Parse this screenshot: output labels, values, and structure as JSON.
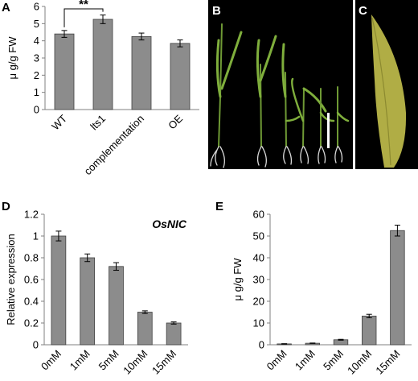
{
  "panels": {
    "A": {
      "label": "A"
    },
    "B": {
      "label": "B"
    },
    "C": {
      "label": "C"
    },
    "D": {
      "label": "D"
    },
    "E": {
      "label": "E"
    }
  },
  "colors": {
    "bar_fill": "#8c8c8c",
    "bar_stroke": "#404040",
    "axis": "#808080",
    "photo_background": "#000000",
    "leaf_green": "#7fae3c",
    "leaf_yellow_green": "#b8b448",
    "root_white": "#d9d9d9"
  },
  "chart_data": [
    {
      "panel": "A",
      "type": "bar",
      "categories": [
        "WT",
        "lts1",
        "complementation",
        "OE"
      ],
      "values": [
        4.4,
        5.25,
        4.25,
        3.85
      ],
      "errors": [
        0.2,
        0.25,
        0.2,
        0.2
      ],
      "ylabel": "μ g/g FW",
      "ylim": [
        0,
        6
      ],
      "yticks": [
        "0",
        "1",
        "2",
        "3",
        "4",
        "5",
        "6"
      ],
      "significance": {
        "text": "**",
        "between": [
          "WT",
          "lts1"
        ]
      },
      "grid": false
    },
    {
      "panel": "D",
      "type": "bar",
      "categories": [
        "0mM",
        "1mM",
        "5mM",
        "10mM",
        "15mM"
      ],
      "values": [
        1.0,
        0.8,
        0.72,
        0.3,
        0.2
      ],
      "errors": [
        0.045,
        0.035,
        0.035,
        0.012,
        0.01
      ],
      "ylabel": "Relative expression",
      "annotation": "OsNIC",
      "ylim": [
        0,
        1.2
      ],
      "yticks": [
        "0",
        "0.2",
        "0.4",
        "0.6",
        "0.8",
        "1",
        "1.2"
      ],
      "grid": false
    },
    {
      "panel": "E",
      "type": "bar",
      "categories": [
        "0mM",
        "1mM",
        "5mM",
        "10mM",
        "15mM"
      ],
      "values": [
        0.4,
        0.7,
        2.3,
        13.2,
        52.5
      ],
      "errors": [
        0.1,
        0.1,
        0.2,
        0.8,
        2.5
      ],
      "ylabel": "μ g/g FW",
      "ylim": [
        0,
        60
      ],
      "yticks": [
        "0",
        "10",
        "20",
        "30",
        "40",
        "50",
        "60"
      ],
      "grid": false
    }
  ]
}
